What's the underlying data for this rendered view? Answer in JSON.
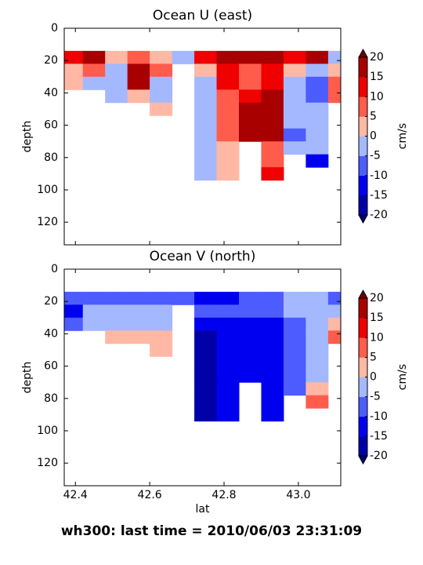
{
  "chart_data": [
    {
      "type": "contour",
      "title": "Ocean U (east)",
      "ylabel": "depth",
      "colorbar_label": "cm/s",
      "x": [
        42.39,
        42.45,
        42.51,
        42.57,
        42.63,
        42.69,
        42.75,
        42.81,
        42.87,
        42.93,
        42.99,
        43.05,
        43.11
      ],
      "y": [
        18,
        26,
        34,
        42,
        50,
        58,
        66,
        74,
        82,
        90,
        98
      ],
      "z": [
        [
          12,
          3,
          3,
          null,
          null,
          null,
          null,
          null,
          null,
          null,
          null
        ],
        [
          17,
          8,
          -3,
          null,
          null,
          null,
          null,
          null,
          null,
          null,
          null
        ],
        [
          3,
          -2,
          -3,
          -3,
          null,
          null,
          null,
          null,
          null,
          null,
          null
        ],
        [
          8,
          17,
          17,
          3,
          null,
          null,
          null,
          null,
          null,
          null,
          null
        ],
        [
          3,
          8,
          -3,
          -3,
          3,
          null,
          null,
          null,
          null,
          null,
          null
        ],
        [
          -3,
          null,
          null,
          null,
          null,
          null,
          null,
          null,
          null,
          null,
          null
        ],
        [
          12,
          3,
          -3,
          -3,
          -3,
          -3,
          -3,
          -3,
          -3,
          -3,
          null
        ],
        [
          17,
          12,
          12,
          8,
          8,
          8,
          8,
          3,
          3,
          3,
          null
        ],
        [
          17,
          8,
          8,
          12,
          17,
          17,
          17,
          null,
          null,
          null,
          null
        ],
        [
          17,
          12,
          12,
          17,
          17,
          17,
          17,
          8,
          8,
          12,
          null
        ],
        [
          12,
          3,
          -3,
          -3,
          -3,
          -3,
          -8,
          -3,
          null,
          null,
          null
        ],
        [
          17,
          -3,
          -8,
          -8,
          -3,
          -3,
          -3,
          -3,
          -13,
          null,
          null
        ],
        [
          -3,
          3,
          8,
          8,
          null,
          null,
          null,
          null,
          null,
          null,
          null
        ]
      ],
      "xlim": [
        42.37,
        43.114
      ],
      "ylim": [
        134,
        0
      ],
      "xticks": [
        42.4,
        42.6,
        42.8,
        {
          "value": 43,
          "label": "43.0"
        }
      ],
      "xtick_labels": false,
      "yticks": [
        0,
        20,
        40,
        60,
        80,
        100,
        120
      ],
      "levels": [
        -20,
        -15,
        -10,
        -5,
        0,
        5,
        10,
        15,
        20
      ],
      "colors": [
        "#0000a8",
        "#0000f0",
        "#4c5cff",
        "#a4b8ff",
        "#ffb8a4",
        "#ff5c4c",
        "#f00000",
        "#a80000"
      ],
      "under_color": "#000070",
      "over_color": "#700000"
    },
    {
      "type": "contour",
      "title": "Ocean V (north)",
      "ylabel": "depth",
      "xlabel": "lat",
      "colorbar_label": "cm/s",
      "x": [
        42.39,
        42.45,
        42.51,
        42.57,
        42.63,
        42.69,
        42.75,
        42.81,
        42.87,
        42.93,
        42.99,
        43.05,
        43.11
      ],
      "y": [
        18,
        26,
        34,
        42,
        50,
        58,
        66,
        74,
        82,
        90,
        98
      ],
      "z": [
        [
          -8,
          -13,
          -8,
          null,
          null,
          null,
          null,
          null,
          null,
          null,
          null
        ],
        [
          -8,
          -3,
          -3,
          null,
          null,
          null,
          null,
          null,
          null,
          null,
          null
        ],
        [
          -8,
          -3,
          -3,
          3,
          null,
          null,
          null,
          null,
          null,
          null,
          null
        ],
        [
          -8,
          -3,
          -3,
          3,
          null,
          null,
          null,
          null,
          null,
          null,
          null
        ],
        [
          -8,
          -3,
          -3,
          3,
          3,
          null,
          null,
          null,
          null,
          null,
          null
        ],
        [
          -8,
          null,
          null,
          null,
          null,
          null,
          null,
          null,
          null,
          null,
          null
        ],
        [
          -13,
          -8,
          -13,
          -18,
          -18,
          -18,
          -18,
          -18,
          -18,
          -18,
          null
        ],
        [
          -13,
          -8,
          -13,
          -13,
          -13,
          -13,
          -13,
          -13,
          -13,
          -13,
          null
        ],
        [
          -8,
          -8,
          -13,
          -13,
          -13,
          -13,
          -13,
          null,
          null,
          null,
          null
        ],
        [
          -8,
          -8,
          -13,
          -13,
          -13,
          -13,
          -13,
          -13,
          -13,
          -13,
          null
        ],
        [
          -3,
          -3,
          -8,
          -8,
          -8,
          -8,
          -8,
          -8,
          null,
          null,
          null
        ],
        [
          -3,
          -3,
          -3,
          -3,
          -3,
          -3,
          -3,
          3,
          8,
          null,
          null
        ],
        [
          -8,
          -3,
          3,
          8,
          null,
          null,
          null,
          null,
          null,
          null,
          null
        ]
      ],
      "xlim": [
        42.37,
        43.114
      ],
      "ylim": [
        134,
        0
      ],
      "xticks": [
        42.4,
        42.6,
        42.8,
        {
          "value": 43,
          "label": "43.0"
        }
      ],
      "xtick_labels": true,
      "yticks": [
        0,
        20,
        40,
        60,
        80,
        100,
        120
      ],
      "levels": [
        -20,
        -15,
        -10,
        -5,
        0,
        5,
        10,
        15,
        20
      ],
      "colors": [
        "#0000a8",
        "#0000f0",
        "#4c5cff",
        "#a4b8ff",
        "#ffb8a4",
        "#ff5c4c",
        "#f00000",
        "#a80000"
      ],
      "under_color": "#000070",
      "over_color": "#700000"
    }
  ],
  "suptitle": "wh300: last time = 2010/06/03 23:31:09"
}
